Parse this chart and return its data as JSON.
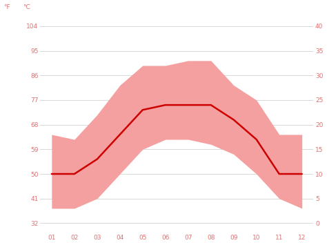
{
  "months": [
    1,
    2,
    3,
    4,
    5,
    6,
    7,
    8,
    9,
    10,
    11,
    12
  ],
  "month_labels": [
    "01",
    "02",
    "03",
    "04",
    "05",
    "06",
    "07",
    "08",
    "09",
    "10",
    "11",
    "12"
  ],
  "avg_temp_c": [
    10,
    10,
    13,
    18,
    23,
    24,
    24,
    24,
    21,
    17,
    10,
    10
  ],
  "max_temp_c": [
    18,
    17,
    22,
    28,
    32,
    32,
    33,
    33,
    28,
    25,
    18,
    18
  ],
  "min_temp_c": [
    3,
    3,
    5,
    10,
    15,
    17,
    17,
    16,
    14,
    10,
    5,
    3
  ],
  "y_ticks_c": [
    0,
    5,
    10,
    15,
    20,
    25,
    30,
    35,
    40
  ],
  "y_ticks_f": [
    32,
    41,
    50,
    59,
    68,
    77,
    86,
    95,
    104
  ],
  "ylim_c": [
    -2,
    42
  ],
  "line_color": "#cc0000",
  "fill_color": "#f5a0a0",
  "background_color": "#ffffff",
  "grid_color": "#d8d8d8",
  "label_color": "#e07070",
  "line_width": 1.8,
  "figsize": [
    4.74,
    3.55
  ],
  "dpi": 100
}
